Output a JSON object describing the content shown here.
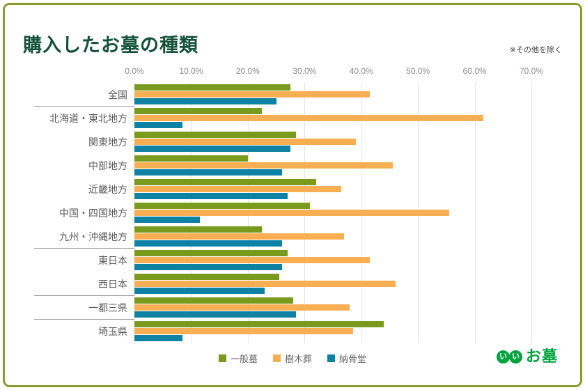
{
  "header": {
    "title": "購入したお墓の種類",
    "note": "※その他を除く"
  },
  "chart_data": {
    "type": "bar",
    "orientation": "horizontal",
    "unit": "%",
    "xlim": [
      0,
      70
    ],
    "grid": true,
    "legend_position": "bottom",
    "axis_ticks": [
      "0.0%",
      "10.0%",
      "20.0%",
      "30.0%",
      "40.0%",
      "50.0%",
      "60.0%",
      "70.0%"
    ],
    "categories": [
      "全国",
      "北海道・東北地方",
      "関東地方",
      "中部地方",
      "近畿地方",
      "中国・四国地方",
      "九州・沖縄地方",
      "東日本",
      "西日本",
      "一都三県",
      "埼玉県"
    ],
    "series": [
      {
        "name": "一般墓",
        "color": "#7A9A1D",
        "values": [
          27.5,
          22.5,
          28.5,
          20.0,
          32.0,
          31.0,
          22.5,
          27.0,
          25.5,
          28.0,
          44.0
        ]
      },
      {
        "name": "樹木葬",
        "color": "#F8AF53",
        "values": [
          41.5,
          61.5,
          39.0,
          45.5,
          36.5,
          55.5,
          37.0,
          41.5,
          46.0,
          38.0,
          38.5
        ]
      },
      {
        "name": "納骨堂",
        "color": "#0E82A5",
        "values": [
          25.0,
          8.5,
          27.5,
          26.0,
          27.0,
          11.5,
          26.0,
          26.0,
          23.0,
          28.5,
          8.5
        ]
      }
    ],
    "separators_after": [
      0,
      6,
      8,
      9
    ]
  },
  "footer": {
    "logo": {
      "circle_char": "い",
      "text": "お墓",
      "color": "#00A33E"
    }
  },
  "colors": {
    "card_border": "#8C9B2B",
    "title_text": "#14523A",
    "gridline": "#E4E4E4",
    "axis_text": "#8C8C8C",
    "category_text": "#5B5B5B"
  }
}
